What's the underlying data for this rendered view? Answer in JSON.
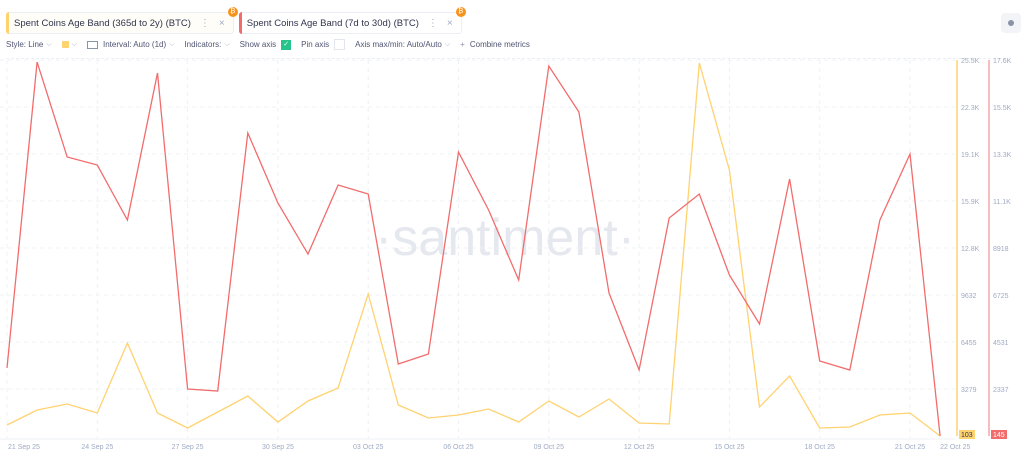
{
  "tabs": [
    {
      "label": "Spent Coins Age Band (365d to 2y) (BTC)",
      "color": "#ffd270",
      "close": "×"
    },
    {
      "label": "Spent Coins Age Band (7d to 30d) (BTC)",
      "color": "#f26c6c",
      "close": "×"
    }
  ],
  "toolbar": {
    "style": "Style: Line",
    "color_swatch": "#ffd270",
    "interval": "Interval: Auto (1d)",
    "indicators": "Indicators:",
    "show_axis": "Show axis",
    "show_axis_checked": true,
    "pin_axis": "Pin axis",
    "pin_axis_checked": false,
    "axis_maxmin": "Axis max/min: Auto/Auto",
    "combine": "Combine metrics",
    "combine_icon": "+"
  },
  "watermark": "·santiment·",
  "chart_data": {
    "type": "line",
    "x": [
      "21 Sep 25",
      "22 Sep 25",
      "23 Sep 25",
      "24 Sep 25",
      "25 Sep 25",
      "26 Sep 25",
      "27 Sep 25",
      "28 Sep 25",
      "29 Sep 25",
      "30 Sep 25",
      "01 Oct 25",
      "02 Oct 25",
      "03 Oct 25",
      "04 Oct 25",
      "05 Oct 25",
      "06 Oct 25",
      "07 Oct 25",
      "08 Oct 25",
      "09 Oct 25",
      "10 Oct 25",
      "11 Oct 25",
      "12 Oct 25",
      "13 Oct 25",
      "14 Oct 25",
      "15 Oct 25",
      "16 Oct 25",
      "17 Oct 25",
      "18 Oct 25",
      "19 Oct 25",
      "20 Oct 25",
      "21 Oct 25",
      "22 Oct 25"
    ],
    "x_tick_labels": [
      "21 Sep 25",
      "24 Sep 25",
      "27 Sep 25",
      "30 Sep 25",
      "03 Oct 25",
      "06 Oct 25",
      "09 Oct 25",
      "12 Oct 25",
      "15 Oct 25",
      "18 Oct 25",
      "21 Oct 25",
      "22 Oct 25"
    ],
    "series": [
      {
        "name": "Spent Coins Age Band (365d to 2y) (BTC)",
        "color": "#ffd270",
        "axis": "left",
        "ylim": [
          103,
          25500
        ],
        "ticks": [
          "25.5K",
          "22.3K",
          "19.1K",
          "15.9K",
          "12.8K",
          "9632",
          "6455",
          "3279"
        ],
        "last_label": "103",
        "values": [
          846,
          1859,
          2265,
          1657,
          6385,
          1657,
          643,
          1724,
          2805,
          1049,
          2467,
          3345,
          9695,
          2197,
          1319,
          1522,
          1927,
          1049,
          2467,
          1386,
          2602,
          981,
          914,
          25300,
          18071,
          2062,
          4156,
          643,
          711,
          1522,
          1657,
          103
        ]
      },
      {
        "name": "Spent Coins Age Band (7d to 30d) (BTC)",
        "color": "#f26c6c",
        "axis": "right",
        "ylim": [
          145,
          17600
        ],
        "ticks": [
          "17.6K",
          "15.5K",
          "13.3K",
          "11.1K",
          "8918",
          "6725",
          "4531",
          "2337"
        ],
        "last_label": "145",
        "values": [
          3302,
          17506,
          13096,
          12725,
          10172,
          16995,
          2327,
          2234,
          14210,
          10961,
          8593,
          11797,
          11379,
          3487,
          3951,
          13328,
          10636,
          7387,
          17320,
          15185,
          6783,
          3209,
          10265,
          11379,
          7619,
          5344,
          12075,
          3627,
          3209,
          10172,
          13235,
          145
        ]
      }
    ],
    "grid": true,
    "legend": "top-left"
  }
}
